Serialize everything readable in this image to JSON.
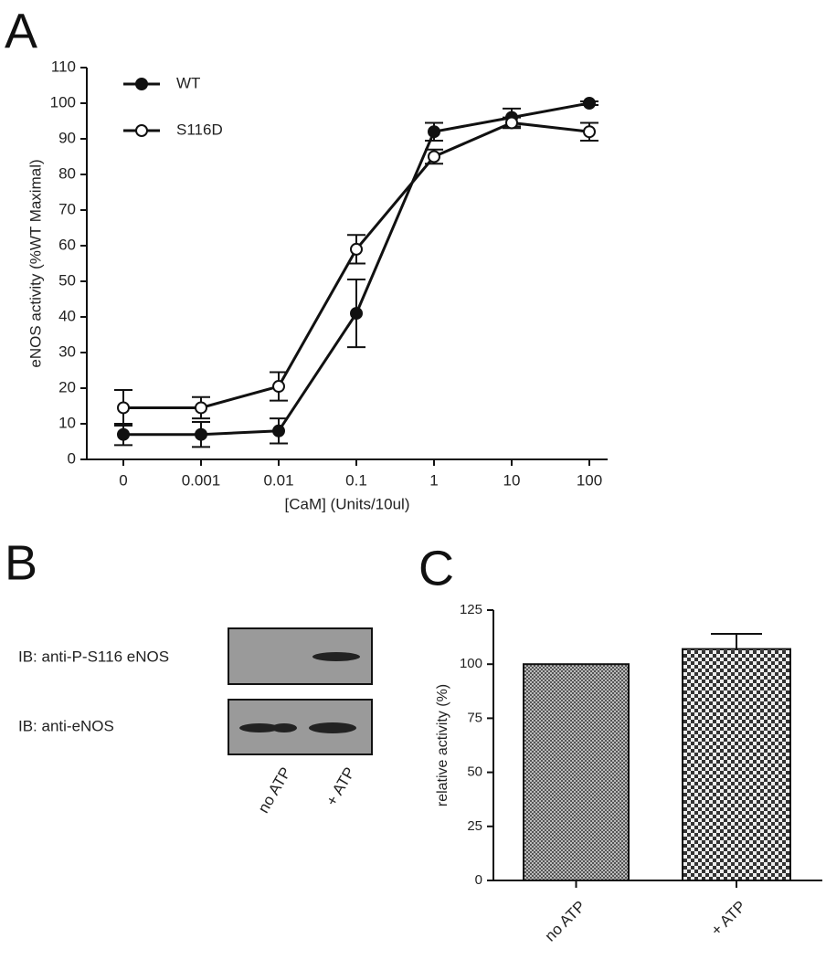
{
  "chart_data": [
    {
      "type": "line",
      "panel_label": "A",
      "y_label": "eNOS activity (%WT Maximal)",
      "x_label": "[CaM] (Units/10ul)",
      "categories": [
        "0",
        "0.001",
        "0.01",
        "0.1",
        "1",
        "10",
        "100"
      ],
      "ylim": [
        0,
        110
      ],
      "yticks": [
        0,
        10,
        20,
        30,
        40,
        50,
        60,
        70,
        80,
        90,
        100,
        110
      ],
      "legend": "top-left",
      "series": [
        {
          "name": "WT",
          "color": "#111111",
          "marker_fill": "#111111",
          "values": [
            7,
            7,
            8,
            41,
            92,
            96,
            100
          ],
          "errors": [
            3,
            3.5,
            3.5,
            9.5,
            2.5,
            2.5,
            0.5
          ]
        },
        {
          "name": "S116D",
          "color": "#111111",
          "marker_fill": "#ffffff",
          "values": [
            14.5,
            14.5,
            20.5,
            59,
            85,
            94.5,
            92
          ],
          "errors": [
            5,
            3,
            4,
            4,
            2,
            1.5,
            2.5
          ]
        }
      ]
    },
    {
      "type": "bar",
      "panel_label": "C",
      "y_label": "relative activity (%)",
      "categories": [
        "no ATP",
        "+ ATP"
      ],
      "values": [
        100,
        107
      ],
      "errors": [
        0,
        7
      ],
      "ylim": [
        0,
        125
      ],
      "yticks": [
        0,
        25,
        50,
        75,
        100,
        125
      ],
      "color": "#555555"
    }
  ],
  "blot": {
    "panel_label": "B",
    "rows": [
      "IB:  anti-P-S116 eNOS",
      "IB:  anti-eNOS"
    ],
    "lanes": [
      "no ATP",
      "+ ATP"
    ]
  }
}
